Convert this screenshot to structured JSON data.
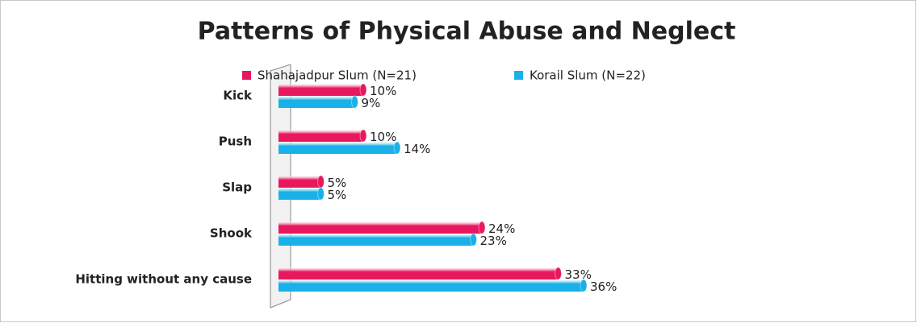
{
  "chart_data": {
    "type": "bar",
    "orientation": "horizontal",
    "title": "Patterns of Physical Abuse and Neglect",
    "categories": [
      "Kick",
      "Push",
      "Slap",
      "Shook",
      "Hitting without any cause"
    ],
    "series": [
      {
        "name": "Shahajadpur Slum (N=21)",
        "color": "#e8185f",
        "values": [
          10,
          10,
          5,
          24,
          33
        ],
        "value_labels": [
          "10%",
          "10%",
          "5%",
          "24%",
          "33%"
        ]
      },
      {
        "name": "Korail Slum (N=22)",
        "color": "#1ab0e8",
        "values": [
          9,
          14,
          5,
          23,
          36
        ],
        "value_labels": [
          "9%",
          "14%",
          "5%",
          "23%",
          "36%"
        ]
      }
    ],
    "legend": "top"
  }
}
